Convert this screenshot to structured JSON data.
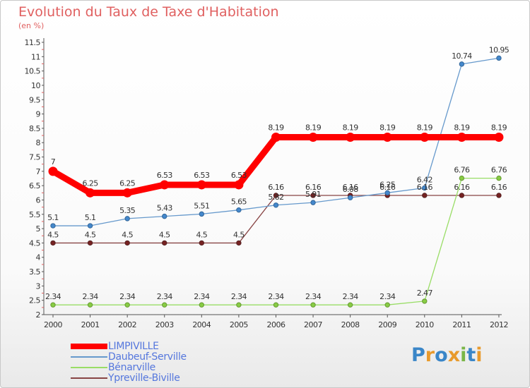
{
  "title": "Evolution du Taux de Taxe d'Habitation",
  "subtitle": "(en %)",
  "logo": {
    "text": "Proxiti",
    "letters": [
      "P",
      "r",
      "o",
      "x",
      "i",
      "t",
      "i"
    ],
    "colors": [
      "#3a86c8",
      "#e89a2c",
      "#3a86c8",
      "#e89a2c",
      "#7ab648",
      "#3a86c8",
      "#e89a2c"
    ]
  },
  "chart_data": {
    "type": "line",
    "categories": [
      "2000",
      "2001",
      "2002",
      "2003",
      "2004",
      "2005",
      "2006",
      "2007",
      "2008",
      "2009",
      "2010",
      "2011",
      "2012"
    ],
    "ylim": [
      2,
      11.5
    ],
    "yticks": [
      "2",
      "2.5",
      "3",
      "3.5",
      "4",
      "4.5",
      "5",
      "5.5",
      "6",
      "6.5",
      "7",
      "7.5",
      "8",
      "8.5",
      "9",
      "9.5",
      "10",
      "10.5",
      "11",
      "11.5"
    ],
    "grid": false,
    "legend_position": "bottom-left",
    "series": [
      {
        "name": "LIMPIVILLE",
        "color": "#ff0000",
        "values": [
          7,
          6.25,
          6.25,
          6.53,
          6.53,
          6.53,
          8.19,
          8.19,
          8.19,
          8.19,
          8.19,
          8.19,
          8.19
        ],
        "labels": [
          "7",
          "6.25",
          "6.25",
          "6.53",
          "6.53",
          "6.53",
          "8.19",
          "8.19",
          "8.19",
          "8.19",
          "8.19",
          "8.19",
          "8.19"
        ]
      },
      {
        "name": "Daubeuf-Serville",
        "color": "#6699cc",
        "values": [
          5.1,
          5.1,
          5.35,
          5.43,
          5.51,
          5.65,
          5.82,
          5.91,
          6.08,
          6.25,
          6.42,
          10.74,
          10.95
        ],
        "labels": [
          "5.1",
          "5.1",
          "5.35",
          "5.43",
          "5.51",
          "5.65",
          "5.82",
          "5.91",
          "6.08",
          "6.25",
          "6.42",
          "10.74",
          "10.95"
        ]
      },
      {
        "name": "Bénarville",
        "color": "#99dd66",
        "values": [
          2.34,
          2.34,
          2.34,
          2.34,
          2.34,
          2.34,
          2.34,
          2.34,
          2.34,
          2.34,
          2.47,
          6.76,
          6.76
        ],
        "labels": [
          "2.34",
          "2.34",
          "2.34",
          "2.34",
          "2.34",
          "2.34",
          "2.34",
          "2.34",
          "2.34",
          "2.34",
          "2.47",
          "6.76",
          "6.76"
        ]
      },
      {
        "name": "Ypreville-Biville",
        "color": "#884444",
        "values": [
          4.5,
          4.5,
          4.5,
          4.5,
          4.5,
          4.5,
          6.16,
          6.16,
          6.16,
          6.16,
          6.16,
          6.16,
          6.16
        ],
        "labels": [
          "4.5",
          "4.5",
          "4.5",
          "4.5",
          "4.5",
          "4.5",
          "6.16",
          "6.16",
          "6.16",
          "6.16",
          "6.16",
          "6.16",
          "6.16"
        ]
      }
    ]
  }
}
